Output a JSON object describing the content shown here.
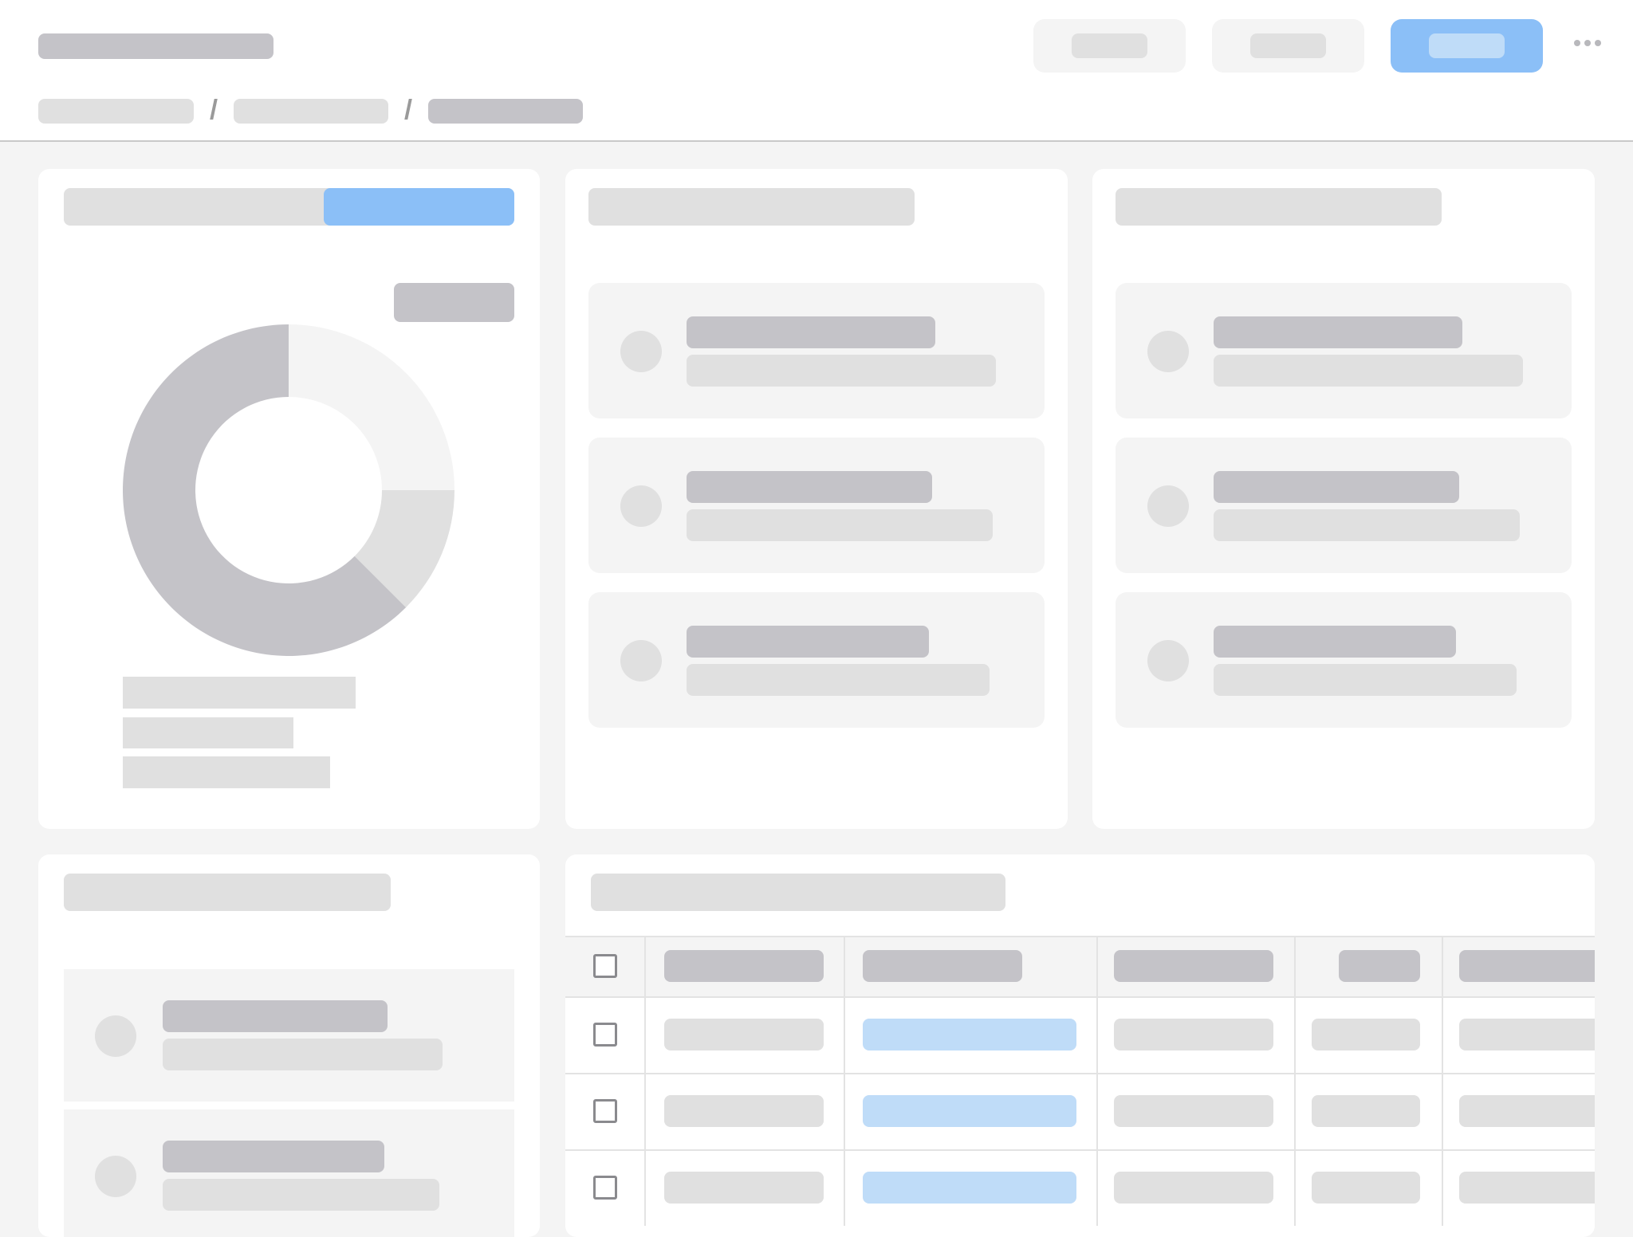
{
  "colors": {
    "background": "#f4f4f4",
    "surface": "#ffffff",
    "skeleton_dark": "#c4c3c8",
    "skeleton_light": "#e0e0e0",
    "accent": "#8bbff7",
    "accent_light": "#bfdcf8"
  },
  "header": {
    "buttons": [
      {
        "style": "secondary"
      },
      {
        "style": "secondary"
      },
      {
        "style": "primary"
      }
    ],
    "more_icon": "more-horizontal-icon",
    "breadcrumb_levels": 3
  },
  "cards": [
    {
      "type": "donut",
      "tabs": [
        {
          "active": false
        },
        {
          "active": true
        }
      ]
    },
    {
      "type": "list",
      "items": [
        {},
        {},
        {}
      ]
    },
    {
      "type": "list",
      "items": [
        {},
        {},
        {}
      ]
    },
    {
      "type": "list",
      "items": [
        {},
        {}
      ]
    },
    {
      "type": "table",
      "columns": 6,
      "rows": [
        {
          "checked": false
        },
        {
          "checked": false
        },
        {
          "checked": false
        }
      ]
    }
  ],
  "chart_data": {
    "type": "pie",
    "donut": true,
    "values": [
      0.25,
      0.125,
      0.625
    ],
    "colors": [
      "#f4f4f4",
      "#e0e0e0",
      "#c4c3c8"
    ]
  }
}
